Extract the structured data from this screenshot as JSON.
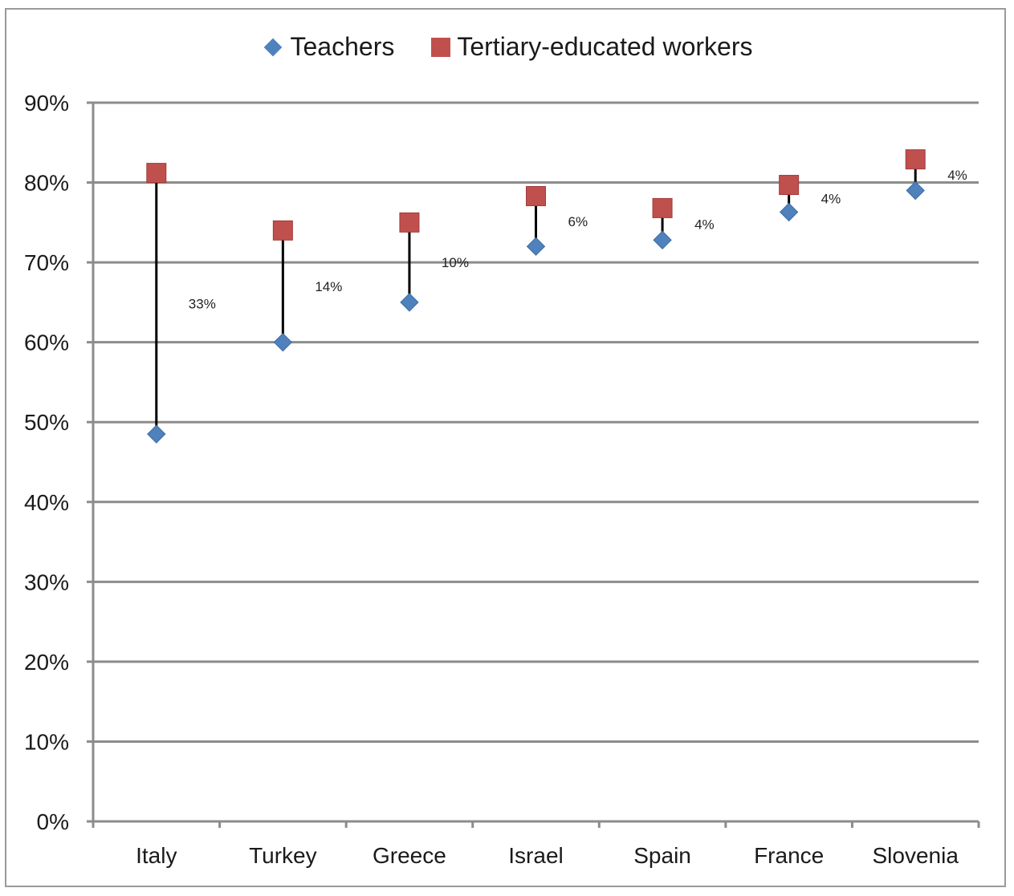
{
  "chart_data": {
    "type": "scatter",
    "categories": [
      "Italy",
      "Turkey",
      "Greece",
      "Israel",
      "Spain",
      "France",
      "Slovenia"
    ],
    "series": [
      {
        "name": "Teachers",
        "values": [
          48.5,
          60.0,
          65.0,
          72.0,
          72.8,
          76.3,
          79.0
        ]
      },
      {
        "name": "Tertiary-educated workers",
        "values": [
          81.2,
          74.0,
          75.0,
          78.3,
          76.8,
          79.7,
          82.9
        ]
      }
    ],
    "gap_labels": [
      "33%",
      "14%",
      "10%",
      "6%",
      "4%",
      "4%",
      "4%"
    ],
    "ylim": [
      0,
      90
    ],
    "yticks": [
      0,
      10,
      20,
      30,
      40,
      50,
      60,
      70,
      80,
      90
    ],
    "ytick_labels": [
      "0%",
      "10%",
      "20%",
      "30%",
      "40%",
      "50%",
      "60%",
      "70%",
      "80%",
      "90%"
    ],
    "grid": true,
    "legend_position": "top-center",
    "colors": {
      "teachers": "#4f81bd",
      "tertiary": "#c0504d",
      "connector": "#000000",
      "grid": "#8c8c8c"
    },
    "legend_markers": {
      "teachers": "diamond",
      "tertiary": "square"
    }
  }
}
